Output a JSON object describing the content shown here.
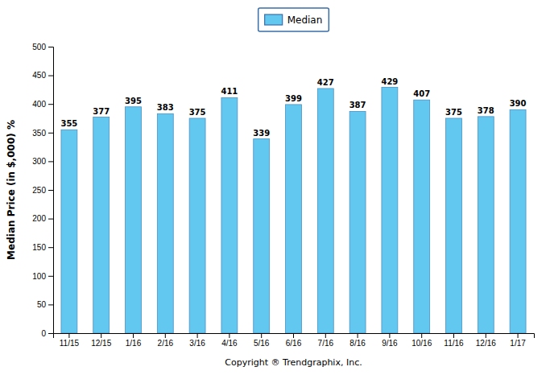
{
  "chart_data": {
    "type": "bar",
    "categories": [
      "11/15",
      "12/15",
      "1/16",
      "2/16",
      "3/16",
      "4/16",
      "5/16",
      "6/16",
      "7/16",
      "8/16",
      "9/16",
      "10/16",
      "11/16",
      "12/16",
      "1/17"
    ],
    "series": [
      {
        "name": "Median",
        "color": "#63C8F0",
        "values": [
          355,
          377,
          395,
          383,
          375,
          411,
          339,
          399,
          427,
          387,
          429,
          407,
          375,
          378,
          390
        ]
      }
    ],
    "ylabel": "Median Price (in $,000) %",
    "xlabel": "Copyright ® Trendgraphix, Inc.",
    "ylim": [
      0,
      500
    ],
    "yticks": [
      0,
      50,
      100,
      150,
      200,
      250,
      300,
      350,
      400,
      450,
      500
    ],
    "grid": false,
    "legend": "top",
    "data_labels": true
  }
}
